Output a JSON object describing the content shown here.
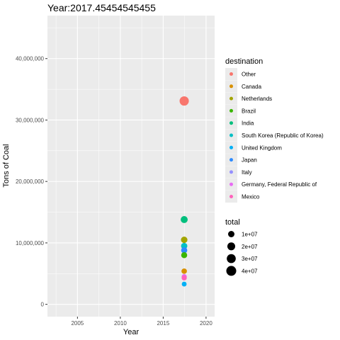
{
  "chart_data": {
    "type": "scatter",
    "title": "Year:2017.45454545455",
    "xlabel": "Year",
    "ylabel": "Tons of Coal",
    "xlim": [
      2001.5,
      2021
    ],
    "ylim": [
      -2000000,
      47000000
    ],
    "x_ticks": [
      2005,
      2010,
      2015,
      2020
    ],
    "y_ticks": [
      0,
      10000000,
      20000000,
      30000000,
      40000000
    ],
    "y_tick_labels": [
      "0",
      "10,000,000",
      "20,000,000",
      "30,000,000",
      "40,000,000"
    ],
    "grid": true,
    "legend_position": "right",
    "panel_background": "#ebebeb",
    "grid_color": "#ffffff",
    "color_legend": {
      "title": "destination",
      "entries": [
        {
          "label": "Other",
          "color": "#F8766D"
        },
        {
          "label": "Canada",
          "color": "#D89000"
        },
        {
          "label": "Netherlands",
          "color": "#A3A500"
        },
        {
          "label": "Brazil",
          "color": "#39B600"
        },
        {
          "label": "India",
          "color": "#00BF7D"
        },
        {
          "label": "South Korea (Republic of Korea)",
          "color": "#00BFC4"
        },
        {
          "label": "United Kingdom",
          "color": "#00B0F6"
        },
        {
          "label": "Japan",
          "color": "#2E8BFF"
        },
        {
          "label": "Italy",
          "color": "#9590FF"
        },
        {
          "label": "Germany, Federal Republic of",
          "color": "#E76BF3"
        },
        {
          "label": "Mexico",
          "color": "#FF62BC"
        }
      ]
    },
    "size_legend": {
      "title": "total",
      "entries": [
        {
          "label": "1e+07",
          "value": 10000000
        },
        {
          "label": "2e+07",
          "value": 20000000
        },
        {
          "label": "3e+07",
          "value": 30000000
        },
        {
          "label": "4e+07",
          "value": 40000000
        }
      ]
    },
    "points": [
      {
        "destination": "Other",
        "x": 2017.45,
        "y": 33100000
      },
      {
        "destination": "India",
        "x": 2017.45,
        "y": 13800000
      },
      {
        "destination": "Netherlands",
        "x": 2017.45,
        "y": 10500000
      },
      {
        "destination": "South Korea (Republic of Korea)",
        "x": 2017.45,
        "y": 9500000
      },
      {
        "destination": "Japan",
        "x": 2017.45,
        "y": 8800000
      },
      {
        "destination": "Brazil",
        "x": 2017.45,
        "y": 8000000
      },
      {
        "destination": "Canada",
        "x": 2017.45,
        "y": 5400000
      },
      {
        "destination": "Germany, Federal Republic of",
        "x": 2017.45,
        "y": 4500000
      },
      {
        "destination": "Mexico",
        "x": 2017.45,
        "y": 4300000
      },
      {
        "destination": "United Kingdom",
        "x": 2017.45,
        "y": 3300000
      }
    ]
  }
}
